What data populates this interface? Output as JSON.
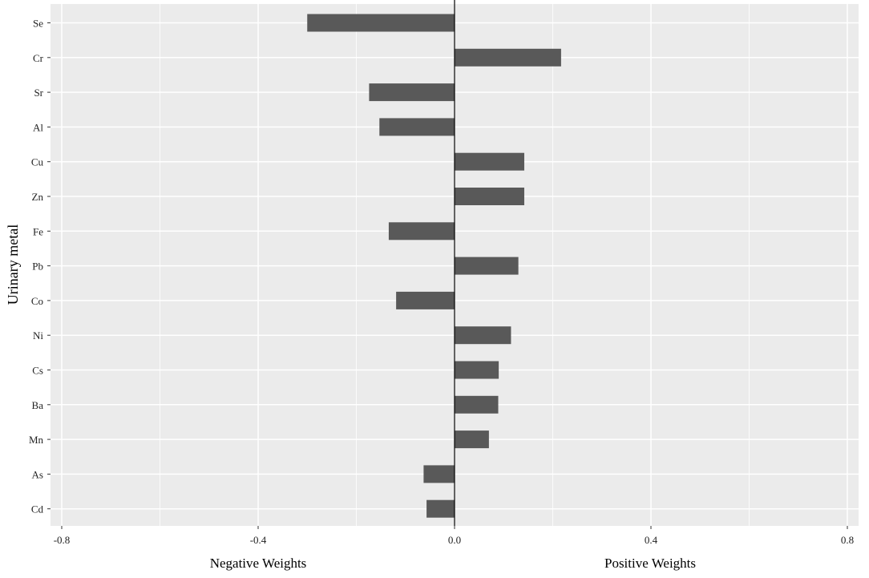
{
  "chart_data": {
    "type": "bar",
    "orientation": "horizontal",
    "title": "",
    "ylabel": "Urinary metal",
    "xlabel_left": "Negative Weights",
    "xlabel_right": "Positive Weights",
    "xlim": [
      -0.8,
      0.8
    ],
    "xticks": [
      -0.8,
      -0.4,
      0.0,
      0.4,
      0.8
    ],
    "xtick_labels": [
      "-0.8",
      "-0.4",
      "0.0",
      "0.4",
      "0.8"
    ],
    "grid": true,
    "legend": "none",
    "categories": [
      "Se",
      "Cr",
      "Sr",
      "Al",
      "Cu",
      "Zn",
      "Fe",
      "Pb",
      "Co",
      "Ni",
      "Cs",
      "Ba",
      "Mn",
      "As",
      "Cd"
    ],
    "values": [
      -0.3,
      0.217,
      -0.174,
      -0.153,
      0.142,
      0.142,
      -0.134,
      0.13,
      -0.119,
      0.115,
      0.09,
      0.089,
      0.07,
      -0.063,
      -0.057
    ],
    "colors": {
      "panel_bg": "#ebebeb",
      "grid": "#ffffff",
      "bar": "#595959",
      "zero_line": "#000000",
      "text": "#222222"
    }
  }
}
